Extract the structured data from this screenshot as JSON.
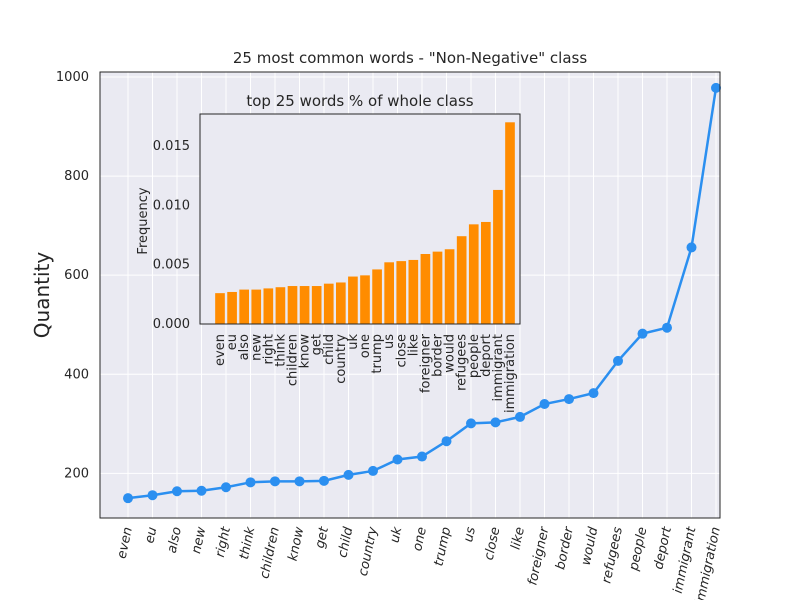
{
  "chart_data": [
    {
      "type": "line",
      "title": "25 most common words - \"Non-Negative\" class",
      "xlabel": "",
      "ylabel": "Quantity",
      "ylim": [
        110,
        1010
      ],
      "yticks": [
        200,
        400,
        600,
        800,
        1000
      ],
      "grid": true,
      "colors": {
        "line": "#2b8ff0",
        "background": "#eaeaf2",
        "grid": "#ffffff"
      },
      "categories": [
        "even",
        "eu",
        "also",
        "new",
        "right",
        "think",
        "children",
        "know",
        "get",
        "child",
        "country",
        "uk",
        "one",
        "trump",
        "us",
        "close",
        "like",
        "foreigner",
        "border",
        "would",
        "refugees",
        "people",
        "deport",
        "immigrant",
        "immigration"
      ],
      "values": [
        150,
        156,
        164,
        165,
        172,
        182,
        184,
        184,
        185,
        197,
        205,
        228,
        234,
        265,
        301,
        303,
        314,
        340,
        350,
        362,
        427,
        482,
        494,
        656,
        978
      ]
    },
    {
      "type": "bar",
      "title": "top 25 words % of whole class",
      "xlabel": "",
      "ylabel": "Frequency",
      "ylim": [
        0,
        0.0177
      ],
      "yticks": [
        "0.000",
        "0.005",
        "0.010",
        "0.015"
      ],
      "colors": {
        "bar": "#ff8c00",
        "background": "#eaeaf2"
      },
      "categories": [
        "even",
        "eu",
        "also",
        "new",
        "right",
        "think",
        "children",
        "know",
        "get",
        "child",
        "country",
        "uk",
        "one",
        "trump",
        "us",
        "close",
        "like",
        "foreigner",
        "border",
        "would",
        "refugees",
        "people",
        "deport",
        "immigrant",
        "immigration"
      ],
      "values": [
        0.0026,
        0.0027,
        0.0029,
        0.0029,
        0.003,
        0.0031,
        0.0032,
        0.0032,
        0.0032,
        0.0034,
        0.0035,
        0.004,
        0.0041,
        0.0046,
        0.0052,
        0.0053,
        0.0054,
        0.0059,
        0.0061,
        0.0063,
        0.0074,
        0.0084,
        0.0086,
        0.0113,
        0.017
      ]
    }
  ]
}
